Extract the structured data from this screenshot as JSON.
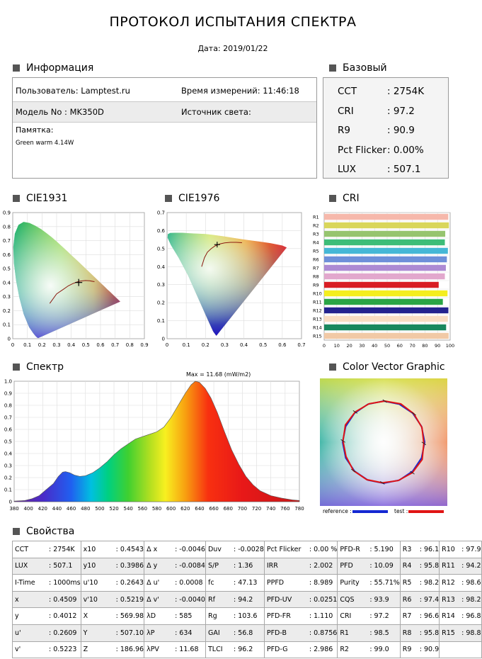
{
  "header": {
    "title": "ПРОТОКОЛ ИСПЫТАНИЯ СПЕКТРА",
    "date": "Дата: 2019/01/22"
  },
  "info": {
    "heading": "Информация",
    "user": "Пользователь: Lamptest.ru",
    "time": "Время измерений: 11:46:18",
    "model": "Модель No : MK350D",
    "source": "Источник света:",
    "memo_label": "Памятка:",
    "memo_text": "Green warm 4.14W"
  },
  "basic": {
    "heading": "Базовый",
    "rows": [
      {
        "label": "CCT",
        "value": ": 2754K"
      },
      {
        "label": "CRI",
        "value": ": 97.2"
      },
      {
        "label": "R9",
        "value": ": 90.9"
      },
      {
        "label": "Pct Flicker",
        "value": ": 0.00%"
      },
      {
        "label": "LUX",
        "value": ": 507.1"
      }
    ]
  },
  "cie1931": {
    "heading": "CIE1931",
    "x_ticks": [
      "0",
      "0.1",
      "0.2",
      "0.3",
      "0.4",
      "0.5",
      "0.6",
      "0.7",
      "0.8",
      "0.9"
    ],
    "y_ticks": [
      "0",
      "0.1",
      "0.2",
      "0.3",
      "0.4",
      "0.5",
      "0.6",
      "0.7",
      "0.8",
      "0.9"
    ],
    "point": [
      0.4509,
      0.4012
    ]
  },
  "cie1976": {
    "heading": "CIE1976",
    "x_ticks": [
      "0",
      "0.1",
      "0.2",
      "0.3",
      "0.4",
      "0.5",
      "0.6",
      "0.7"
    ],
    "y_ticks": [
      "0",
      "0.1",
      "0.2",
      "0.3",
      "0.4",
      "0.5",
      "0.6",
      "0.7"
    ],
    "point": [
      0.2609,
      0.5223
    ]
  },
  "cri_chart": {
    "heading": "CRI",
    "x_ticks": [
      "0",
      "10",
      "20",
      "30",
      "40",
      "50",
      "60",
      "70",
      "80",
      "90",
      "100"
    ],
    "colors": [
      "#f6b8ab",
      "#d9d65a",
      "#96c46e",
      "#3dbd78",
      "#45b7d6",
      "#6e8fd9",
      "#ad8ad3",
      "#e2a8cd",
      "#d81e24",
      "#f4ee1f",
      "#2aa545",
      "#23238f",
      "#f8dcc2",
      "#18875e",
      "#f1c9a6"
    ]
  },
  "spectrum": {
    "heading": "Спектр",
    "max_label": "Max = 11.68 (mW/m2)",
    "x_ticks": [
      "380",
      "400",
      "420",
      "440",
      "460",
      "480",
      "500",
      "520",
      "540",
      "560",
      "580",
      "600",
      "620",
      "640",
      "660",
      "680",
      "700",
      "720",
      "740",
      "760",
      "780"
    ],
    "y_ticks": [
      "0",
      "0.1",
      "0.2",
      "0.3",
      "0.4",
      "0.5",
      "0.6",
      "0.7",
      "0.8",
      "0.9",
      "1.0"
    ]
  },
  "cvg": {
    "heading": "Color Vector Graphic",
    "ref_label": "reference :",
    "test_label": "test :",
    "ref_color": "#1428d2",
    "test_color": "#e01414"
  },
  "props": {
    "heading": "Свойства",
    "rows": [
      [
        [
          "CCT",
          ": 2754K"
        ],
        [
          "x10",
          ": 0.4543"
        ],
        [
          "Δ x",
          ": -0.0046"
        ],
        [
          "Duv",
          ": -0.0028"
        ],
        [
          "Pct Flicker",
          ": 0.00 %"
        ],
        [
          "PFD-R",
          ": 5.190"
        ],
        [
          "R3",
          ": 96.1"
        ],
        [
          "R10",
          ": 97.9"
        ]
      ],
      [
        [
          "LUX",
          ": 507.1"
        ],
        [
          "y10",
          ": 0.3986"
        ],
        [
          "Δ y",
          ": -0.0084"
        ],
        [
          "S/P",
          ": 1.36"
        ],
        [
          "IRR",
          ": 2.002"
        ],
        [
          "PFD",
          ": 10.09"
        ],
        [
          "R4",
          ": 95.8"
        ],
        [
          "R11",
          ": 94.2"
        ]
      ],
      [
        [
          "I-Time",
          ": 1000ms"
        ],
        [
          "u'10",
          ": 0.2643"
        ],
        [
          "Δ u'",
          ": 0.0008"
        ],
        [
          "fc",
          ": 47.13"
        ],
        [
          "PPFD",
          ": 8.989"
        ],
        [
          "Purity",
          ": 55.71%"
        ],
        [
          "R5",
          ": 98.2"
        ],
        [
          "R12",
          ": 98.6"
        ]
      ],
      [
        [
          "x",
          ": 0.4509"
        ],
        [
          "v'10",
          ": 0.5219"
        ],
        [
          "Δ v'",
          ": -0.0040"
        ],
        [
          "Rf",
          ": 94.2"
        ],
        [
          "PFD-UV",
          ": 0.0251"
        ],
        [
          "CQS",
          ": 93.9"
        ],
        [
          "R6",
          ": 97.4"
        ],
        [
          "R13",
          ": 98.2"
        ]
      ],
      [
        [
          "y",
          ": 0.4012"
        ],
        [
          "X",
          ": 569.98"
        ],
        [
          "λD",
          ": 585"
        ],
        [
          "Rg",
          ": 103.6"
        ],
        [
          "PFD-FR",
          ": 1.110"
        ],
        [
          "CRI",
          ": 97.2"
        ],
        [
          "R7",
          ": 96.6"
        ],
        [
          "R14",
          ": 96.8"
        ]
      ],
      [
        [
          "u'",
          ": 0.2609"
        ],
        [
          "Y",
          ": 507.10"
        ],
        [
          "λP",
          ": 634"
        ],
        [
          "GAI",
          ": 56.8"
        ],
        [
          "PFD-B",
          ": 0.8756"
        ],
        [
          "R1",
          ": 98.5"
        ],
        [
          "R8",
          ": 95.8"
        ],
        [
          "R15",
          ": 98.8"
        ]
      ],
      [
        [
          "v'",
          ": 0.5223"
        ],
        [
          "Z",
          ": 186.96"
        ],
        [
          "λPV",
          ": 11.68"
        ],
        [
          "TLCI",
          ": 96.2"
        ],
        [
          "PFD-G",
          ": 2.986"
        ],
        [
          "R2",
          ": 99.0"
        ],
        [
          "R9",
          ": 90.9"
        ],
        [
          "",
          ""
        ]
      ]
    ]
  }
}
